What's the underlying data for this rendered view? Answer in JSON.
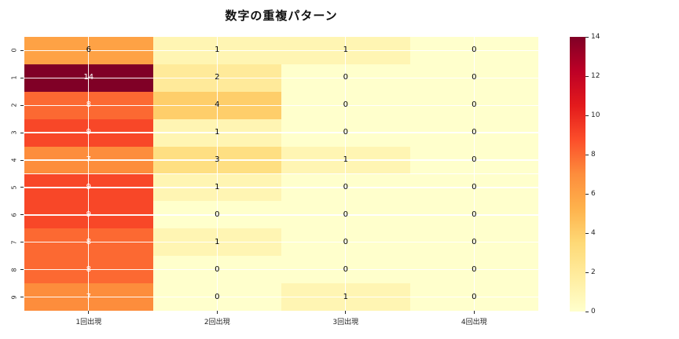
{
  "chart_data": {
    "type": "heatmap",
    "title": "数字の重複パターン",
    "x_categories": [
      "1回出現",
      "2回出現",
      "3回出現",
      "4回出現"
    ],
    "y_categories": [
      "0",
      "1",
      "2",
      "3",
      "4",
      "5",
      "6",
      "7",
      "8",
      "9"
    ],
    "values": [
      [
        6,
        1,
        1,
        0
      ],
      [
        14,
        2,
        0,
        0
      ],
      [
        8,
        4,
        0,
        0
      ],
      [
        9,
        1,
        0,
        0
      ],
      [
        7,
        3,
        1,
        0
      ],
      [
        9,
        1,
        0,
        0
      ],
      [
        9,
        0,
        0,
        0
      ],
      [
        8,
        1,
        0,
        0
      ],
      [
        8,
        0,
        0,
        0
      ],
      [
        7,
        0,
        1,
        0
      ]
    ],
    "vmin": 0,
    "vmax": 14,
    "colormap": "YlOrRd",
    "colormap_stops": [
      {
        "pos": 0.0,
        "color": "#ffffcc"
      },
      {
        "pos": 0.125,
        "color": "#ffeda0"
      },
      {
        "pos": 0.25,
        "color": "#fed976"
      },
      {
        "pos": 0.375,
        "color": "#feb24c"
      },
      {
        "pos": 0.5,
        "color": "#fd8d3c"
      },
      {
        "pos": 0.625,
        "color": "#fc4e2a"
      },
      {
        "pos": 0.75,
        "color": "#e31a1c"
      },
      {
        "pos": 0.875,
        "color": "#bd0026"
      },
      {
        "pos": 1.0,
        "color": "#800026"
      }
    ],
    "colorbar_ticks": [
      0,
      2,
      4,
      6,
      8,
      10,
      12,
      14
    ],
    "grid_color": "#ffffff",
    "annotation_colors": {
      "on_light": "#000000",
      "on_dark": "#ffffff"
    },
    "legend_position": "right-colorbar",
    "gridlines": true
  }
}
